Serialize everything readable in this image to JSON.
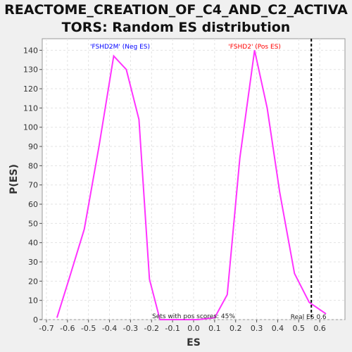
{
  "chart_data": {
    "type": "line",
    "title_line1": "REACTOME_CREATION_OF_C4_AND_C2_ACTIVA",
    "title_line2": "TORS: Random ES distribution",
    "xlabel": "ES",
    "ylabel": "P(ES)",
    "xlim": [
      -0.72,
      0.72
    ],
    "ylim": [
      0,
      146
    ],
    "xticks": [
      -0.7,
      -0.6,
      -0.5,
      -0.4,
      -0.3,
      -0.2,
      -0.1,
      0.0,
      0.1,
      0.2,
      0.3,
      0.4,
      0.5,
      0.6
    ],
    "xtick_labels": [
      "-0.7",
      "-0.6",
      "-0.5",
      "-0.4",
      "-0.3",
      "-0.2",
      "-0.1",
      "0.0",
      "0.1",
      "0.2",
      "0.3",
      "0.4",
      "0.5",
      "0.6"
    ],
    "yticks": [
      0,
      10,
      20,
      30,
      40,
      50,
      60,
      70,
      80,
      90,
      100,
      110,
      120,
      130,
      140
    ],
    "grid": true,
    "series": [
      {
        "color": "#ff33ff",
        "x": [
          -0.65,
          -0.59,
          -0.52,
          -0.45,
          -0.38,
          -0.32,
          -0.26,
          -0.21,
          -0.16,
          -0.1,
          -0.04,
          0.02,
          0.1,
          0.16,
          0.22,
          0.29,
          0.35,
          0.41,
          0.48,
          0.55,
          0.63
        ],
        "y": [
          1,
          22,
          47,
          90,
          137,
          130,
          104,
          21,
          0,
          0,
          0,
          0,
          1,
          13,
          84,
          140,
          110,
          66,
          24,
          9,
          3
        ]
      }
    ],
    "real_es": 0.56,
    "real_es_label": "Real ES 0.6",
    "neg_label": "'FSHD2M' (Neg ES)",
    "neg_color": "#0000ff",
    "pos_label": "'FSHD2' (Pos ES)",
    "pos_color": "#ff0000",
    "pos_scores_label": "Sets with pos scores: 45%"
  }
}
